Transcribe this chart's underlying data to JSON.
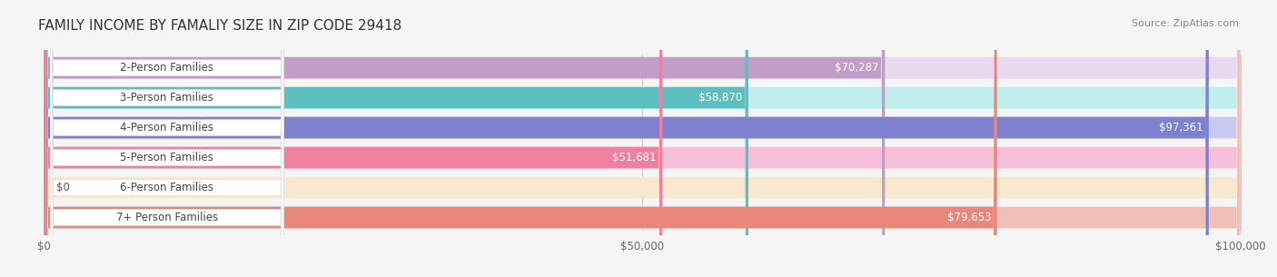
{
  "title": "FAMILY INCOME BY FAMALIY SIZE IN ZIP CODE 29418",
  "source": "Source: ZipAtlas.com",
  "categories": [
    "2-Person Families",
    "3-Person Families",
    "4-Person Families",
    "5-Person Families",
    "6-Person Families",
    "7+ Person Families"
  ],
  "values": [
    70287,
    58870,
    97361,
    51681,
    0,
    79653
  ],
  "labels": [
    "$70,287",
    "$58,870",
    "$97,361",
    "$51,681",
    "$0",
    "$79,653"
  ],
  "bar_colors": [
    "#c09ec8",
    "#5dbfbf",
    "#8080d0",
    "#f080a0",
    "#f0c898",
    "#e88878"
  ],
  "bar_bg_colors": [
    "#e8d8f0",
    "#c0eeee",
    "#c8c8f0",
    "#f8c0d8",
    "#f8e8d0",
    "#f0c0b8"
  ],
  "xmax": 100000,
  "xticks": [
    0,
    50000,
    100000
  ],
  "xtick_labels": [
    "$0",
    "$50,000",
    "$100,000"
  ],
  "bg_color": "#f5f5f5",
  "bar_bg_color": "#ebebeb",
  "title_fontsize": 11,
  "label_fontsize": 8.5,
  "source_fontsize": 8
}
